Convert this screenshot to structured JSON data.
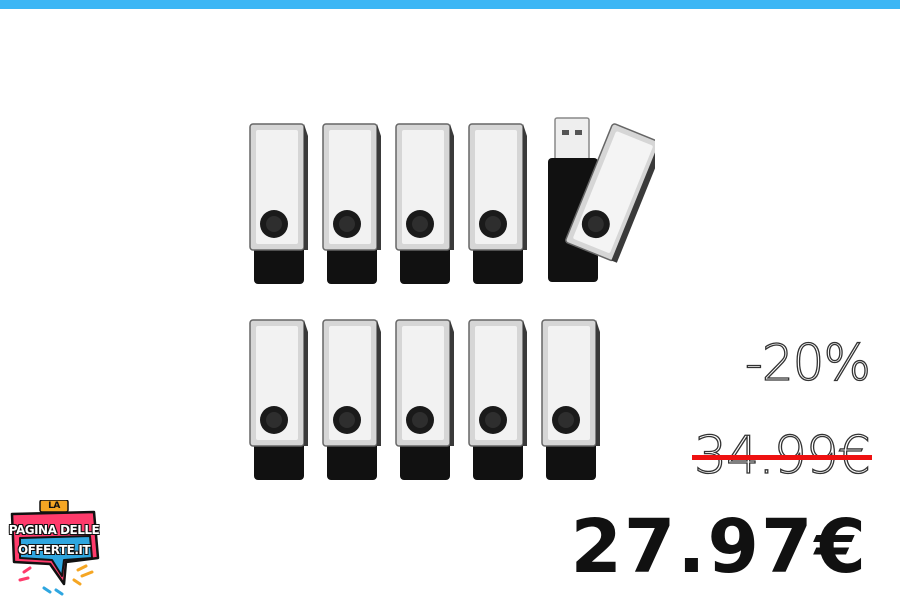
{
  "brand": {
    "logo_top": "LA",
    "logo_line1": "PAGINA DELLE",
    "logo_line2": "OFFERTE.IT",
    "accent_color": "#3bb6f5"
  },
  "product": {
    "image": "usb-flash-drive-10-pack",
    "drive_count": 10
  },
  "pricing": {
    "discount": "-20%",
    "old_price": "34.99€",
    "new_price": "27.97€",
    "strike_color": "#ee1111"
  }
}
